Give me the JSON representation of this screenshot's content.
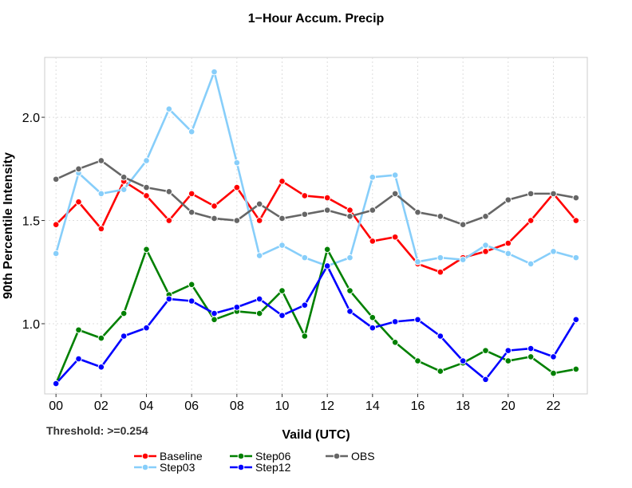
{
  "chart_data": {
    "type": "line",
    "title": "1−Hour Accum. Precip",
    "xlabel": "Vaild (UTC)",
    "ylabel": "90th Percentile Intensity",
    "threshold_note": "Threshold: >=0.254",
    "x": [
      0,
      1,
      2,
      3,
      4,
      5,
      6,
      7,
      8,
      9,
      10,
      11,
      12,
      13,
      14,
      15,
      16,
      17,
      18,
      19,
      20,
      21,
      22,
      23
    ],
    "xtick_values": [
      0,
      2,
      4,
      6,
      8,
      10,
      12,
      14,
      16,
      18,
      20,
      22
    ],
    "xtick_labels": [
      "00",
      "02",
      "04",
      "06",
      "08",
      "10",
      "12",
      "14",
      "16",
      "18",
      "20",
      "22"
    ],
    "ytick_values": [
      1.0,
      1.5,
      2.0
    ],
    "ytick_labels": [
      "1.0",
      "1.5",
      "2.0"
    ],
    "xlim": [
      -0.5,
      23.5
    ],
    "ylim": [
      0.66,
      2.29
    ],
    "grid": true,
    "legend_position": "bottom",
    "series": [
      {
        "name": "Baseline",
        "color": "#ff0000",
        "values": [
          1.48,
          1.59,
          1.46,
          1.69,
          1.62,
          1.5,
          1.63,
          1.57,
          1.66,
          1.5,
          1.69,
          1.62,
          1.61,
          1.55,
          1.4,
          1.42,
          1.29,
          1.25,
          1.32,
          1.35,
          1.39,
          1.5,
          1.63,
          1.5
        ]
      },
      {
        "name": "Step03",
        "color": "#87cefa",
        "values": [
          1.34,
          1.73,
          1.63,
          1.65,
          1.79,
          2.04,
          1.93,
          2.22,
          1.78,
          1.33,
          1.38,
          1.32,
          1.28,
          1.32,
          1.71,
          1.72,
          1.3,
          1.32,
          1.31,
          1.38,
          1.34,
          1.29,
          1.35,
          1.32
        ]
      },
      {
        "name": "Step06",
        "color": "#008000",
        "values": [
          0.71,
          0.97,
          0.93,
          1.05,
          1.36,
          1.14,
          1.19,
          1.02,
          1.06,
          1.05,
          1.16,
          0.94,
          1.36,
          1.16,
          1.03,
          0.91,
          0.82,
          0.77,
          0.81,
          0.87,
          0.82,
          0.84,
          0.76,
          0.78
        ]
      },
      {
        "name": "Step12",
        "color": "#0000ff",
        "values": [
          0.71,
          0.83,
          0.79,
          0.94,
          0.98,
          1.12,
          1.11,
          1.05,
          1.08,
          1.12,
          1.04,
          1.09,
          1.28,
          1.06,
          0.98,
          1.01,
          1.02,
          0.94,
          0.82,
          0.73,
          0.87,
          0.88,
          0.84,
          1.02
        ]
      },
      {
        "name": "OBS",
        "color": "#666666",
        "values": [
          1.7,
          1.75,
          1.79,
          1.71,
          1.66,
          1.64,
          1.54,
          1.51,
          1.5,
          1.58,
          1.51,
          1.53,
          1.55,
          1.52,
          1.55,
          1.63,
          1.54,
          1.52,
          1.48,
          1.52,
          1.6,
          1.63,
          1.63,
          1.61
        ]
      }
    ]
  }
}
